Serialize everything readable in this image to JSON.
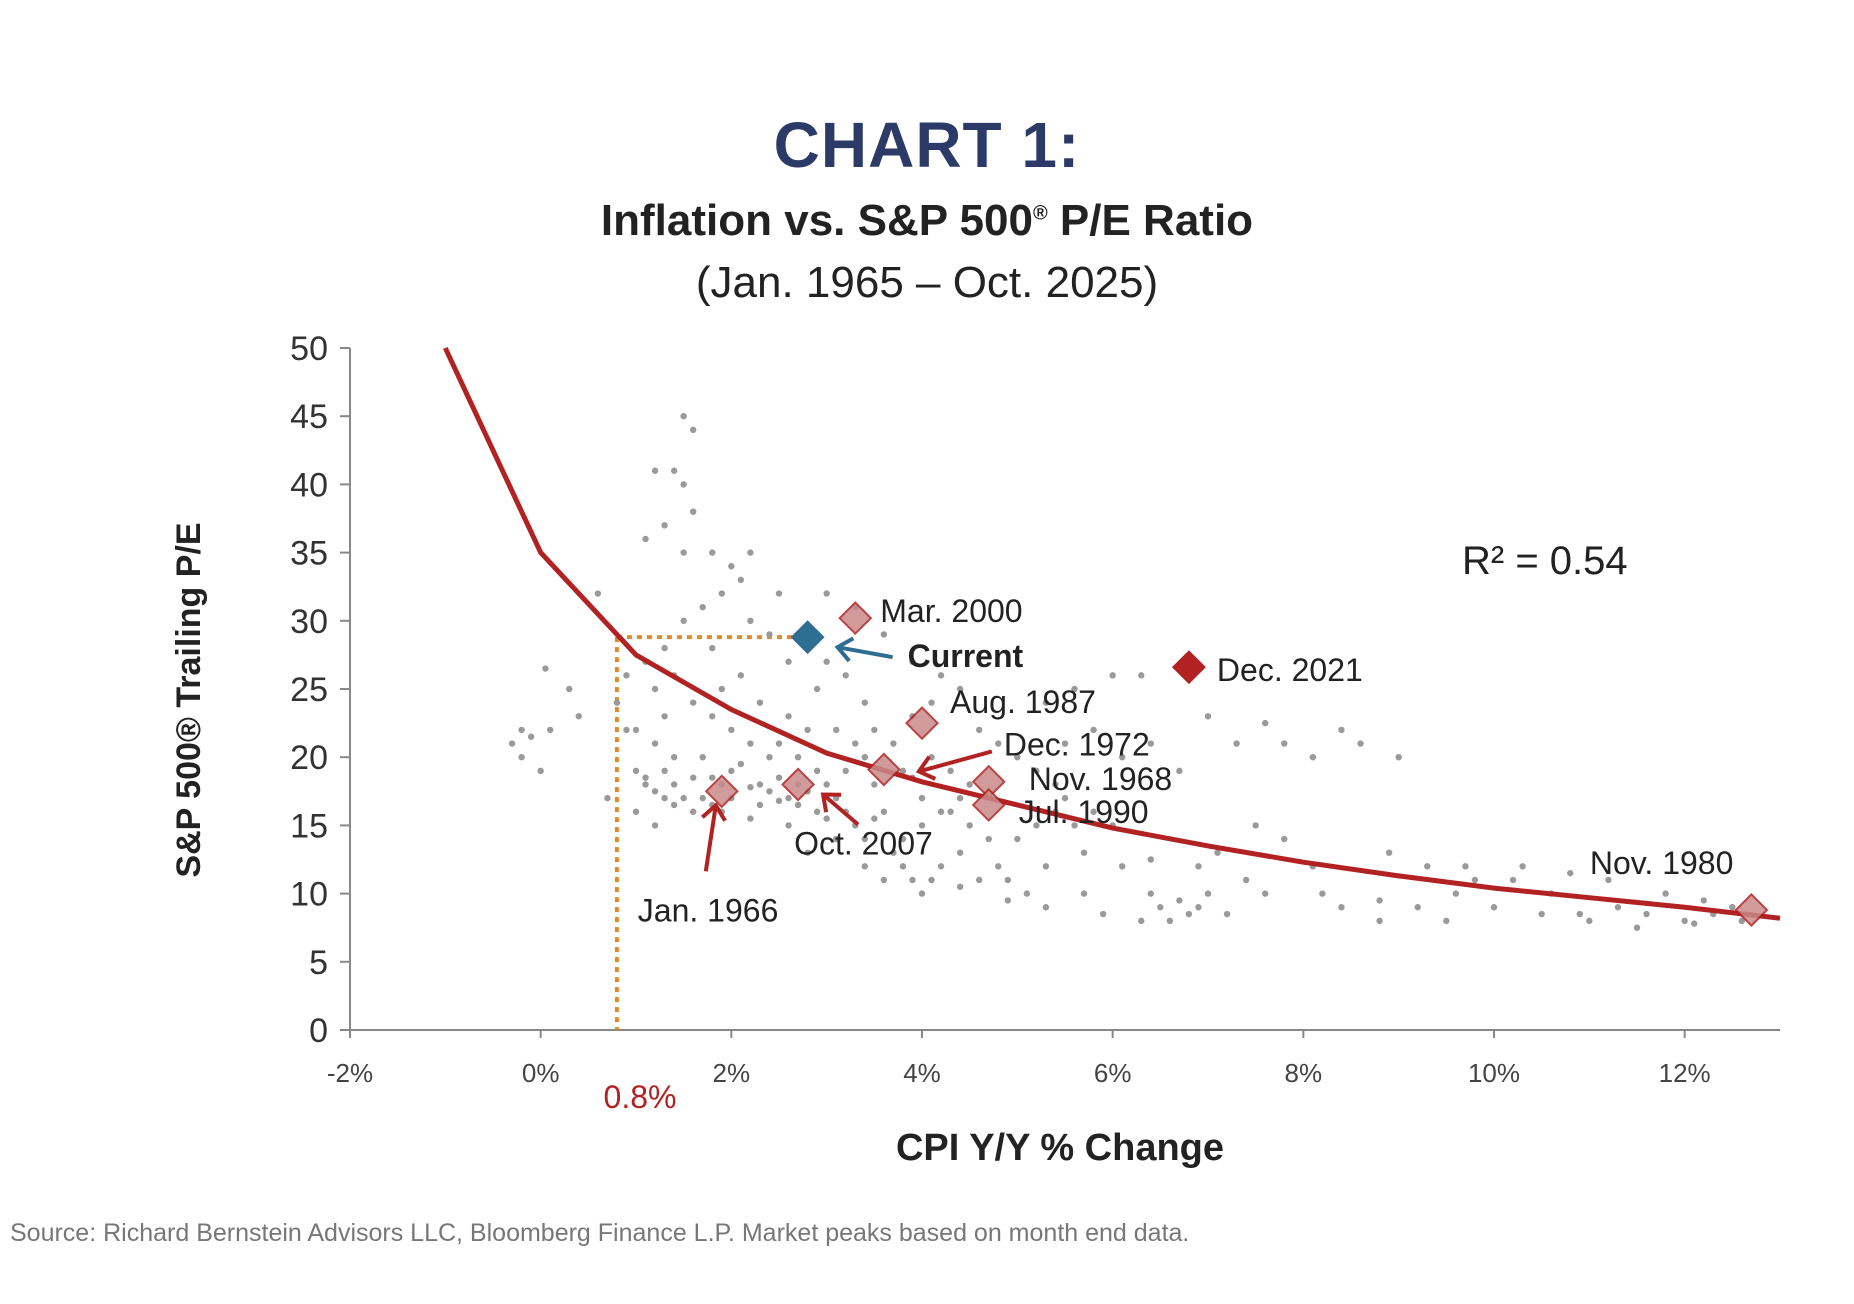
{
  "title": "CHART 1:",
  "subtitle": "Inflation vs. S&P 500",
  "subtitle_mark": "®",
  "subtitle_rest": " P/E Ratio",
  "date_range": "(Jan. 1965 – Oct. 2025)",
  "source": "Source: Richard Bernstein Advisors LLC, Bloomberg Finance L.P.  Market peaks based on month end data.",
  "colors": {
    "points": "#9a9a9a",
    "trend": "#b22222",
    "current": "#2e6e93",
    "highlight": "#b22222",
    "guide": "#e08a2e",
    "title": "#2b3a67"
  },
  "chart_data": {
    "type": "scatter",
    "title": "CHART 1:",
    "xlabel": "CPI Y/Y % Change",
    "ylabel": "S&P 500® Trailing P/E",
    "xlim": [
      -2,
      13
    ],
    "ylim": [
      0,
      50
    ],
    "xticks": [
      -2,
      0,
      2,
      4,
      6,
      8,
      10,
      12
    ],
    "xtick_labels": [
      "-2%",
      "0%",
      "2%",
      "4%",
      "6%",
      "8%",
      "10%",
      "12%"
    ],
    "yticks": [
      0,
      5,
      10,
      15,
      20,
      25,
      30,
      35,
      40,
      45,
      50
    ],
    "grid": false,
    "r_squared": "R² = 0.54",
    "guide_marker": {
      "x": 0.8,
      "y": 28.8,
      "label": "0.8%"
    },
    "trendline": {
      "type": "power-fit",
      "points": [
        [
          -1,
          50
        ],
        [
          0,
          35
        ],
        [
          0.8,
          29
        ],
        [
          1,
          27.5
        ],
        [
          2,
          23.5
        ],
        [
          3,
          20.3
        ],
        [
          4,
          18.2
        ],
        [
          5,
          16.5
        ],
        [
          6,
          14.8
        ],
        [
          7,
          13.5
        ],
        [
          8,
          12.3
        ],
        [
          9,
          11.3
        ],
        [
          10,
          10.4
        ],
        [
          11,
          9.7
        ],
        [
          12,
          9.0
        ],
        [
          13,
          8.2
        ]
      ]
    },
    "annotations": [
      {
        "label": "Current",
        "x": 2.8,
        "y": 28.8,
        "style": "current"
      },
      {
        "label": "Mar. 2000",
        "x": 3.3,
        "y": 30.2,
        "style": "highlight"
      },
      {
        "label": "Dec. 2021",
        "x": 6.8,
        "y": 26.6,
        "style": "solid"
      },
      {
        "label": "Aug. 1987",
        "x": 4.0,
        "y": 22.5,
        "style": "highlight"
      },
      {
        "label": "Dec. 1972",
        "x": 3.6,
        "y": 19.1,
        "style": "highlight"
      },
      {
        "label": "Nov. 1968",
        "x": 4.7,
        "y": 18.2,
        "style": "highlight"
      },
      {
        "label": "Jul. 1990",
        "x": 4.7,
        "y": 16.5,
        "style": "highlight"
      },
      {
        "label": "Oct. 2007",
        "x": 2.7,
        "y": 18.0,
        "style": "highlight"
      },
      {
        "label": "Jan. 1966",
        "x": 1.9,
        "y": 17.5,
        "style": "highlight"
      },
      {
        "label": "Nov. 1980",
        "x": 12.7,
        "y": 8.8,
        "style": "highlight"
      }
    ],
    "points": [
      [
        -0.3,
        21
      ],
      [
        -0.2,
        20
      ],
      [
        -0.1,
        21.5
      ],
      [
        0,
        19
      ],
      [
        0.1,
        22
      ],
      [
        -0.2,
        22
      ],
      [
        0.05,
        26.5
      ],
      [
        0.3,
        25
      ],
      [
        0.4,
        23
      ],
      [
        0.6,
        32
      ],
      [
        0.8,
        24
      ],
      [
        0.9,
        26
      ],
      [
        1.0,
        22
      ],
      [
        1.0,
        19
      ],
      [
        1.1,
        18
      ],
      [
        1.2,
        17.5
      ],
      [
        1.3,
        19
      ],
      [
        1.4,
        18
      ],
      [
        1.5,
        17
      ],
      [
        1.6,
        18.5
      ],
      [
        1.7,
        17
      ],
      [
        1.8,
        16.5
      ],
      [
        1.9,
        18
      ],
      [
        2.0,
        19
      ],
      [
        1.5,
        45
      ],
      [
        1.6,
        44
      ],
      [
        1.4,
        41
      ],
      [
        1.5,
        40
      ],
      [
        1.2,
        41
      ],
      [
        1.6,
        38
      ],
      [
        1.3,
        37
      ],
      [
        1.1,
        36
      ],
      [
        1.5,
        35
      ],
      [
        1.8,
        35
      ],
      [
        2.0,
        34
      ],
      [
        2.2,
        35
      ],
      [
        2.1,
        33
      ],
      [
        1.9,
        32
      ],
      [
        1.7,
        31
      ],
      [
        1.5,
        30
      ],
      [
        1.3,
        28
      ],
      [
        1.1,
        27
      ],
      [
        1.4,
        26
      ],
      [
        1.8,
        28
      ],
      [
        2.2,
        30
      ],
      [
        2.5,
        32
      ],
      [
        2.4,
        29
      ],
      [
        2.6,
        27
      ],
      [
        2.1,
        26
      ],
      [
        1.9,
        25
      ],
      [
        1.6,
        24
      ],
      [
        1.3,
        23
      ],
      [
        1.2,
        25
      ],
      [
        2.3,
        24
      ],
      [
        2.6,
        23
      ],
      [
        2.9,
        25
      ],
      [
        3.0,
        27
      ],
      [
        3.2,
        26
      ],
      [
        3.4,
        24
      ],
      [
        3.1,
        22
      ],
      [
        2.8,
        22
      ],
      [
        2.5,
        21
      ],
      [
        2.2,
        21
      ],
      [
        2.0,
        22
      ],
      [
        1.8,
        23
      ],
      [
        3.5,
        22
      ],
      [
        3.7,
        21
      ],
      [
        3.4,
        20
      ],
      [
        3.8,
        19
      ],
      [
        4.1,
        20
      ],
      [
        4.3,
        19
      ],
      [
        4.5,
        18
      ],
      [
        2.3,
        18
      ],
      [
        2.4,
        17.5
      ],
      [
        2.5,
        18.5
      ],
      [
        2.6,
        17
      ],
      [
        2.7,
        18
      ],
      [
        2.8,
        17.5
      ],
      [
        2.9,
        19
      ],
      [
        3.0,
        18
      ],
      [
        3.1,
        17
      ],
      [
        3.2,
        16
      ],
      [
        3.3,
        15
      ],
      [
        3.4,
        14
      ],
      [
        3.5,
        15.5
      ],
      [
        3.6,
        16
      ],
      [
        3.7,
        13
      ],
      [
        3.8,
        12
      ],
      [
        3.9,
        11
      ],
      [
        4.0,
        10
      ],
      [
        4.2,
        12
      ],
      [
        4.4,
        13
      ],
      [
        4.6,
        11
      ],
      [
        4.8,
        12
      ],
      [
        5.0,
        14
      ],
      [
        5.2,
        15
      ],
      [
        5.4,
        16
      ],
      [
        5.5,
        17
      ],
      [
        5.6,
        15
      ],
      [
        5.8,
        16
      ],
      [
        6.0,
        15
      ],
      [
        5.7,
        13
      ],
      [
        5.3,
        12
      ],
      [
        5.1,
        10
      ],
      [
        4.9,
        11
      ],
      [
        5.9,
        8.5
      ],
      [
        6.3,
        8
      ],
      [
        6.5,
        9
      ],
      [
        6.6,
        8
      ],
      [
        6.7,
        9.5
      ],
      [
        6.8,
        8.5
      ],
      [
        6.9,
        9
      ],
      [
        7.0,
        10
      ],
      [
        6.4,
        10
      ],
      [
        7.2,
        8.5
      ],
      [
        5.5,
        21
      ],
      [
        5.8,
        22
      ],
      [
        6.1,
        20
      ],
      [
        6.4,
        21
      ],
      [
        6.7,
        19
      ],
      [
        5.3,
        24
      ],
      [
        5.6,
        25
      ],
      [
        6.0,
        26
      ],
      [
        6.3,
        26
      ],
      [
        7.0,
        23
      ],
      [
        7.3,
        21
      ],
      [
        7.6,
        22.5
      ],
      [
        7.8,
        21
      ],
      [
        8.1,
        20
      ],
      [
        8.4,
        22
      ],
      [
        8.6,
        21
      ],
      [
        9.0,
        20
      ],
      [
        7.5,
        15
      ],
      [
        7.8,
        14
      ],
      [
        8.1,
        12
      ],
      [
        7.4,
        11
      ],
      [
        7.6,
        10
      ],
      [
        8.2,
        10
      ],
      [
        8.4,
        9
      ],
      [
        8.8,
        9.5
      ],
      [
        9.2,
        9
      ],
      [
        9.6,
        10
      ],
      [
        9.8,
        11
      ],
      [
        10.2,
        11
      ],
      [
        10.6,
        10
      ],
      [
        10.9,
        8.5
      ],
      [
        11.3,
        9
      ],
      [
        11.6,
        8.5
      ],
      [
        11.8,
        10
      ],
      [
        12.0,
        8
      ],
      [
        12.3,
        8.5
      ],
      [
        12.5,
        9
      ],
      [
        8.8,
        8
      ],
      [
        9.5,
        8
      ],
      [
        10.0,
        9
      ],
      [
        10.5,
        8.5
      ],
      [
        11.0,
        8
      ],
      [
        11.5,
        7.5
      ],
      [
        12.1,
        7.8
      ],
      [
        12.6,
        8
      ],
      [
        9.3,
        12
      ],
      [
        8.9,
        13
      ],
      [
        9.7,
        12
      ],
      [
        10.3,
        12
      ],
      [
        10.8,
        11.5
      ],
      [
        11.2,
        11
      ],
      [
        12.2,
        9.5
      ],
      [
        3.0,
        32
      ],
      [
        3.3,
        31
      ],
      [
        3.6,
        29
      ],
      [
        3.9,
        27
      ],
      [
        4.2,
        26
      ],
      [
        4.4,
        25
      ],
      [
        4.1,
        24
      ],
      [
        3.9,
        23
      ],
      [
        4.6,
        22
      ],
      [
        4.8,
        21
      ],
      [
        5.0,
        20
      ],
      [
        5.2,
        19
      ],
      [
        5.4,
        18
      ],
      [
        4.2,
        16
      ],
      [
        4.0,
        15
      ],
      [
        3.8,
        14
      ],
      [
        4.5,
        15
      ],
      [
        4.7,
        14
      ],
      [
        4.4,
        17
      ],
      [
        3.2,
        19
      ],
      [
        3.3,
        21
      ],
      [
        2.7,
        20
      ],
      [
        2.4,
        20
      ],
      [
        2.1,
        19.5
      ],
      [
        1.7,
        20
      ],
      [
        1.4,
        20
      ],
      [
        1.2,
        21
      ],
      [
        0.9,
        22
      ],
      [
        2.3,
        16.5
      ],
      [
        1.9,
        16
      ],
      [
        1.6,
        16
      ],
      [
        1.3,
        17
      ],
      [
        1.1,
        18.5
      ],
      [
        2.9,
        16
      ],
      [
        2.6,
        15
      ],
      [
        2.2,
        15.5
      ],
      [
        3.0,
        15.5
      ],
      [
        3.1,
        14
      ],
      [
        2.8,
        13
      ],
      [
        3.4,
        12
      ],
      [
        3.6,
        11
      ],
      [
        4.1,
        11
      ],
      [
        4.4,
        10.5
      ],
      [
        4.9,
        9.5
      ],
      [
        5.3,
        9
      ],
      [
        5.7,
        10
      ],
      [
        6.1,
        12
      ],
      [
        6.4,
        12.5
      ],
      [
        6.9,
        12
      ],
      [
        7.1,
        13
      ],
      [
        1.0,
        16
      ],
      [
        1.2,
        15
      ],
      [
        1.4,
        16.5
      ],
      [
        0.7,
        17
      ],
      [
        1.8,
        18.5
      ],
      [
        2.0,
        17
      ],
      [
        2.2,
        17.8
      ],
      [
        2.5,
        16.8
      ],
      [
        2.7,
        16.5
      ],
      [
        3.5,
        18
      ],
      [
        3.9,
        18.5
      ],
      [
        4.0,
        17
      ],
      [
        4.3,
        16
      ]
    ]
  },
  "labels": {
    "r_squared": "R² = 0.54",
    "guide_value": "0.8%"
  }
}
